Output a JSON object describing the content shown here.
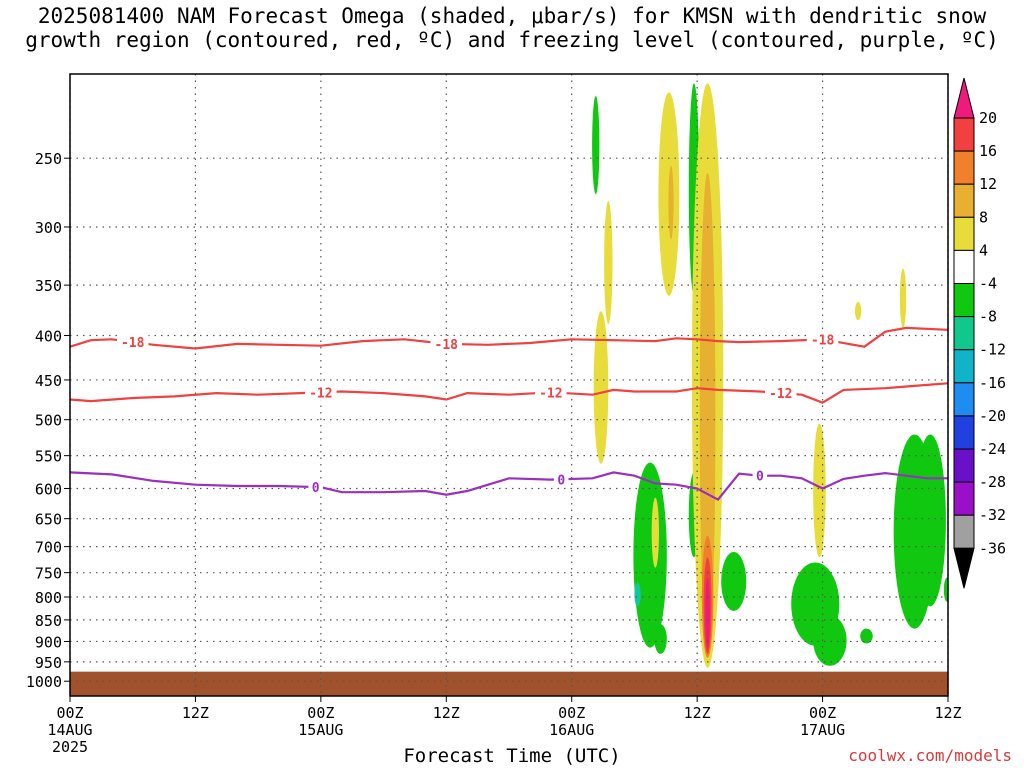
{
  "title": "2025081400 NAM Forecast Omega (shaded, μbar/s) for KMSN with dendritic snow\ngrowth region (contoured, red, ºC) and freezing level (contoured, purple, ºC)",
  "credit": "coolwx.com/models",
  "chart_data": {
    "type": "heatmap",
    "title": "2025081400 NAM Forecast Omega (shaded, μbar/s) for KMSN with dendritic snow growth region (contoured, red, ºC) and freezing level (contoured, purple, ºC)",
    "xlabel": "Forecast Time (UTC)",
    "ylabel": "",
    "x_unit": "hours from 2025-08-14 00Z",
    "xlim": [
      0,
      84
    ],
    "ylim_pressure_hPa": [
      1040,
      200
    ],
    "y_scale": "log",
    "grid": true,
    "x_ticks": [
      {
        "x": 0,
        "lines": [
          "00Z",
          "14AUG",
          "2025"
        ]
      },
      {
        "x": 12,
        "lines": [
          "12Z"
        ]
      },
      {
        "x": 24,
        "lines": [
          "00Z",
          "15AUG"
        ]
      },
      {
        "x": 36,
        "lines": [
          "12Z"
        ]
      },
      {
        "x": 48,
        "lines": [
          "00Z",
          "16AUG"
        ]
      },
      {
        "x": 60,
        "lines": [
          "12Z"
        ]
      },
      {
        "x": 72,
        "lines": [
          "00Z",
          "17AUG"
        ]
      },
      {
        "x": 84,
        "lines": [
          "12Z"
        ]
      }
    ],
    "y_ticks": [
      250,
      300,
      350,
      400,
      450,
      500,
      550,
      600,
      650,
      700,
      750,
      800,
      850,
      900,
      950,
      1000
    ],
    "colorbar": {
      "labels": [
        "20",
        "16",
        "12",
        "8",
        "4",
        "-4",
        "-8",
        "-12",
        "-16",
        "-20",
        "-24",
        "-28",
        "-32",
        "-36"
      ],
      "colors": [
        "#ee1a7c",
        "#f04040",
        "#f0802a",
        "#e8b030",
        "#e8dc3a",
        "#ffffff",
        "#10c810",
        "#10c88c",
        "#10b4c8",
        "#1e8cf0",
        "#2040e0",
        "#6a10c8",
        "#9a10c8",
        "#a0a0a0",
        "#000000"
      ]
    },
    "ground_color": "#a0522d",
    "ground_top_hPa": 975,
    "contours": [
      {
        "label": "-18",
        "color": "#f04040",
        "points": [
          [
            0,
            412
          ],
          [
            2,
            405
          ],
          [
            4,
            404
          ],
          [
            8,
            410
          ],
          [
            12,
            414
          ],
          [
            16,
            409
          ],
          [
            20,
            410
          ],
          [
            24,
            411
          ],
          [
            28,
            406
          ],
          [
            32,
            404
          ],
          [
            36,
            409
          ],
          [
            40,
            410
          ],
          [
            44,
            408
          ],
          [
            46,
            406
          ],
          [
            48,
            404
          ],
          [
            52,
            405
          ],
          [
            56,
            406
          ],
          [
            58,
            403
          ],
          [
            60,
            404
          ],
          [
            62,
            406
          ],
          [
            64,
            407
          ],
          [
            68,
            406
          ],
          [
            72,
            404
          ],
          [
            76,
            412
          ],
          [
            78,
            396
          ],
          [
            80,
            392
          ],
          [
            84,
            394
          ]
        ],
        "labels_at": [
          6,
          36,
          72
        ]
      },
      {
        "label": "-12",
        "color": "#f04040",
        "points": [
          [
            0,
            474
          ],
          [
            2,
            476
          ],
          [
            6,
            472
          ],
          [
            10,
            470
          ],
          [
            14,
            466
          ],
          [
            18,
            468
          ],
          [
            22,
            466
          ],
          [
            26,
            464
          ],
          [
            30,
            466
          ],
          [
            34,
            470
          ],
          [
            36,
            474
          ],
          [
            38,
            466
          ],
          [
            42,
            468
          ],
          [
            46,
            465
          ],
          [
            50,
            468
          ],
          [
            52,
            462
          ],
          [
            54,
            464
          ],
          [
            58,
            464
          ],
          [
            60,
            460
          ],
          [
            62,
            462
          ],
          [
            66,
            464
          ],
          [
            70,
            468
          ],
          [
            72,
            478
          ],
          [
            74,
            462
          ],
          [
            78,
            460
          ],
          [
            82,
            456
          ],
          [
            84,
            454
          ]
        ],
        "labels_at": [
          24,
          46,
          68
        ]
      },
      {
        "label": "0",
        "color": "#9a2fc0",
        "points": [
          [
            0,
            575
          ],
          [
            4,
            578
          ],
          [
            8,
            588
          ],
          [
            12,
            594
          ],
          [
            16,
            596
          ],
          [
            20,
            596
          ],
          [
            24,
            598
          ],
          [
            26,
            606
          ],
          [
            30,
            606
          ],
          [
            34,
            604
          ],
          [
            36,
            610
          ],
          [
            38,
            604
          ],
          [
            40,
            594
          ],
          [
            42,
            584
          ],
          [
            46,
            586
          ],
          [
            50,
            584
          ],
          [
            52,
            575
          ],
          [
            54,
            580
          ],
          [
            56,
            592
          ],
          [
            58,
            594
          ],
          [
            60,
            600
          ],
          [
            62,
            618
          ],
          [
            64,
            577
          ],
          [
            66,
            580
          ],
          [
            68,
            580
          ],
          [
            70,
            584
          ],
          [
            72,
            600
          ],
          [
            74,
            585
          ],
          [
            76,
            580
          ],
          [
            78,
            576
          ],
          [
            80,
            580
          ],
          [
            82,
            584
          ],
          [
            84,
            584
          ]
        ],
        "labels_at": [
          23.5,
          47,
          66
        ]
      }
    ],
    "shaded_regions": [
      {
        "value": -6,
        "color": "#10c810",
        "x": 50.3,
        "p_top": 212,
        "p_bot": 275,
        "hw": 0.35
      },
      {
        "value": 6,
        "color": "#e8dc3a",
        "x": 51.5,
        "p_top": 280,
        "p_bot": 388,
        "hw": 0.4
      },
      {
        "value": 6,
        "color": "#e8dc3a",
        "x": 50.8,
        "p_top": 375,
        "p_bot": 562,
        "hw": 0.7
      },
      {
        "value": -6,
        "color": "#10c810",
        "x": 55.5,
        "p_top": 560,
        "p_bot": 915,
        "hw": 1.6
      },
      {
        "value": -10,
        "color": "#10c8a0",
        "x": 54.3,
        "p_top": 770,
        "p_bot": 820,
        "hw": 0.3
      },
      {
        "value": -6,
        "color": "#10c810",
        "x": 56.5,
        "p_top": 860,
        "p_bot": 930,
        "hw": 0.6
      },
      {
        "value": 6,
        "color": "#e8dc3a",
        "x": 56.0,
        "p_top": 615,
        "p_bot": 740,
        "hw": 0.35
      },
      {
        "value": 6,
        "color": "#e8dc3a",
        "x": 57.3,
        "p_top": 210,
        "p_bot": 360,
        "hw": 1.0
      },
      {
        "value": 10,
        "color": "#e8b030",
        "x": 57.5,
        "p_top": 255,
        "p_bot": 310,
        "hw": 0.25
      },
      {
        "value": -6,
        "color": "#10c810",
        "x": 59.7,
        "p_top": 205,
        "p_bot": 360,
        "hw": 0.5
      },
      {
        "value": -6,
        "color": "#10c810",
        "x": 59.7,
        "p_top": 575,
        "p_bot": 720,
        "hw": 0.5
      },
      {
        "value": 6,
        "color": "#e8dc3a",
        "x": 61.0,
        "p_top": 205,
        "p_bot": 965,
        "hw": 1.5
      },
      {
        "value": 10,
        "color": "#e8b030",
        "x": 61.0,
        "p_top": 260,
        "p_bot": 940,
        "hw": 0.75
      },
      {
        "value": 14,
        "color": "#f0802a",
        "x": 61.0,
        "p_top": 680,
        "p_bot": 940,
        "hw": 0.55
      },
      {
        "value": 18,
        "color": "#f04040",
        "x": 61.0,
        "p_top": 720,
        "p_bot": 930,
        "hw": 0.38
      },
      {
        "value": 22,
        "color": "#ee1a7c",
        "x": 61.0,
        "p_top": 760,
        "p_bot": 920,
        "hw": 0.22
      },
      {
        "value": -6,
        "color": "#10c810",
        "x": 63.5,
        "p_top": 710,
        "p_bot": 830,
        "hw": 1.2
      },
      {
        "value": 6,
        "color": "#e8dc3a",
        "x": 71.7,
        "p_top": 505,
        "p_bot": 720,
        "hw": 0.6
      },
      {
        "value": -6,
        "color": "#10c810",
        "x": 71.3,
        "p_top": 730,
        "p_bot": 910,
        "hw": 2.3
      },
      {
        "value": -6,
        "color": "#10c810",
        "x": 72.7,
        "p_top": 840,
        "p_bot": 960,
        "hw": 1.6
      },
      {
        "value": 6,
        "color": "#e8dc3a",
        "x": 75.4,
        "p_top": 366,
        "p_bot": 384,
        "hw": 0.3
      },
      {
        "value": -6,
        "color": "#10c810",
        "x": 76.2,
        "p_top": 870,
        "p_bot": 905,
        "hw": 0.6
      },
      {
        "value": 6,
        "color": "#e8dc3a",
        "x": 79.7,
        "p_top": 335,
        "p_bot": 392,
        "hw": 0.3
      },
      {
        "value": -6,
        "color": "#10c810",
        "x": 80.8,
        "p_top": 520,
        "p_bot": 870,
        "hw": 2.0
      },
      {
        "value": -6,
        "color": "#10c810",
        "x": 82.3,
        "p_top": 520,
        "p_bot": 820,
        "hw": 1.5
      },
      {
        "value": -6,
        "color": "#10c810",
        "x": 83.9,
        "p_top": 760,
        "p_bot": 810,
        "hw": 0.3
      }
    ]
  }
}
